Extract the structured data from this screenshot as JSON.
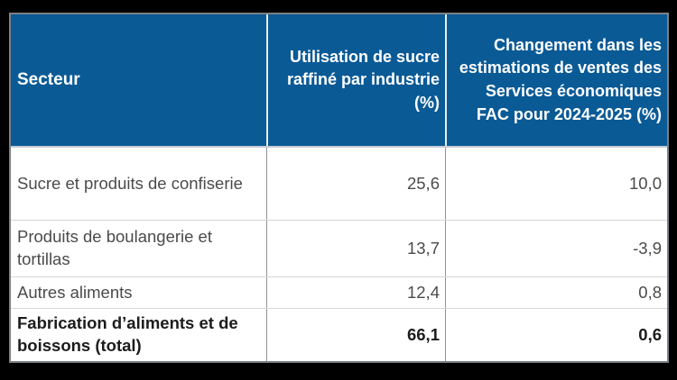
{
  "chart_data": {
    "type": "table",
    "columns": [
      "Secteur",
      "Utilisation de sucre raffiné par industrie (%)",
      "Changement dans les estimations de ventes des Services économiques FAC pour 2024-2025 (%)"
    ],
    "rows": [
      [
        "Sucre et produits de confiserie",
        25.6,
        10.0
      ],
      [
        "Produits de boulangerie et tortillas",
        13.7,
        -3.9
      ],
      [
        "Autres aliments",
        12.4,
        0.8
      ],
      [
        "Fabrication d’aliments et de boissons (total)",
        66.1,
        0.6
      ]
    ],
    "number_format": "decimal comma (fr-CA)"
  },
  "table": {
    "header": {
      "secteur": "Secteur",
      "utilisation": "Utilisation de sucre raffiné par industrie (%)",
      "changement": "Changement dans les estimations de ventes des Services économiques FAC pour 2024-2025 (%)"
    },
    "rows": [
      {
        "secteur": "Sucre et produits de confiserie",
        "utilisation": "25,6",
        "changement": "10,0"
      },
      {
        "secteur": "Produits de boulangerie et tortillas",
        "utilisation": "13,7",
        "changement": "-3,9"
      },
      {
        "secteur": "Autres aliments",
        "utilisation": "12,4",
        "changement": "0,8"
      },
      {
        "secteur": "Fabrication d’aliments et de boissons (total)",
        "utilisation": "66,1",
        "changement": "0,6"
      }
    ]
  },
  "colors": {
    "header_bg": "#0a5a96",
    "header_text": "#ffffff",
    "header_divider": "#e9ebee",
    "header_bottom": "#c7ccd3",
    "body_text": "#4b4b4b",
    "total_text": "#1c1c1c",
    "outer_border": "#7c8187",
    "column_divider": "#8f9397",
    "row_separator": "#d6d6d6",
    "frame_bg": "#000000"
  }
}
